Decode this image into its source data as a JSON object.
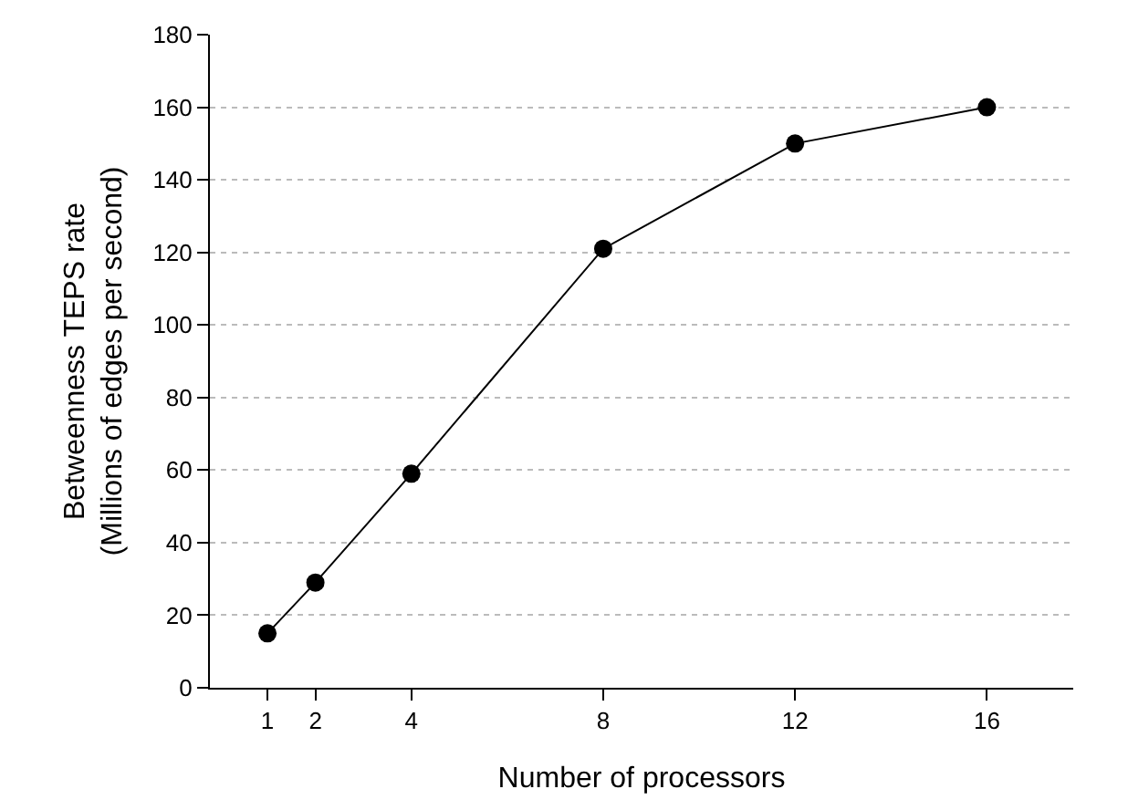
{
  "chart_data": {
    "type": "line",
    "xlabel": "Number of processors",
    "ylabel": "Betweenness TEPS rate\n(Millions of edges per second)",
    "x": [
      1,
      2,
      4,
      8,
      12,
      16
    ],
    "series": [
      {
        "color": "#000000",
        "values": [
          15,
          29,
          59,
          121,
          150,
          160
        ]
      }
    ],
    "xlim": [
      -0.2,
      17.8
    ],
    "xticks": [
      1,
      2,
      4,
      8,
      12,
      16
    ],
    "ylim": [
      0,
      180
    ],
    "yticks": [
      0,
      20,
      40,
      60,
      80,
      100,
      120,
      140,
      160,
      180
    ],
    "grid": "y",
    "marker": "circle",
    "line_style": "solid"
  }
}
